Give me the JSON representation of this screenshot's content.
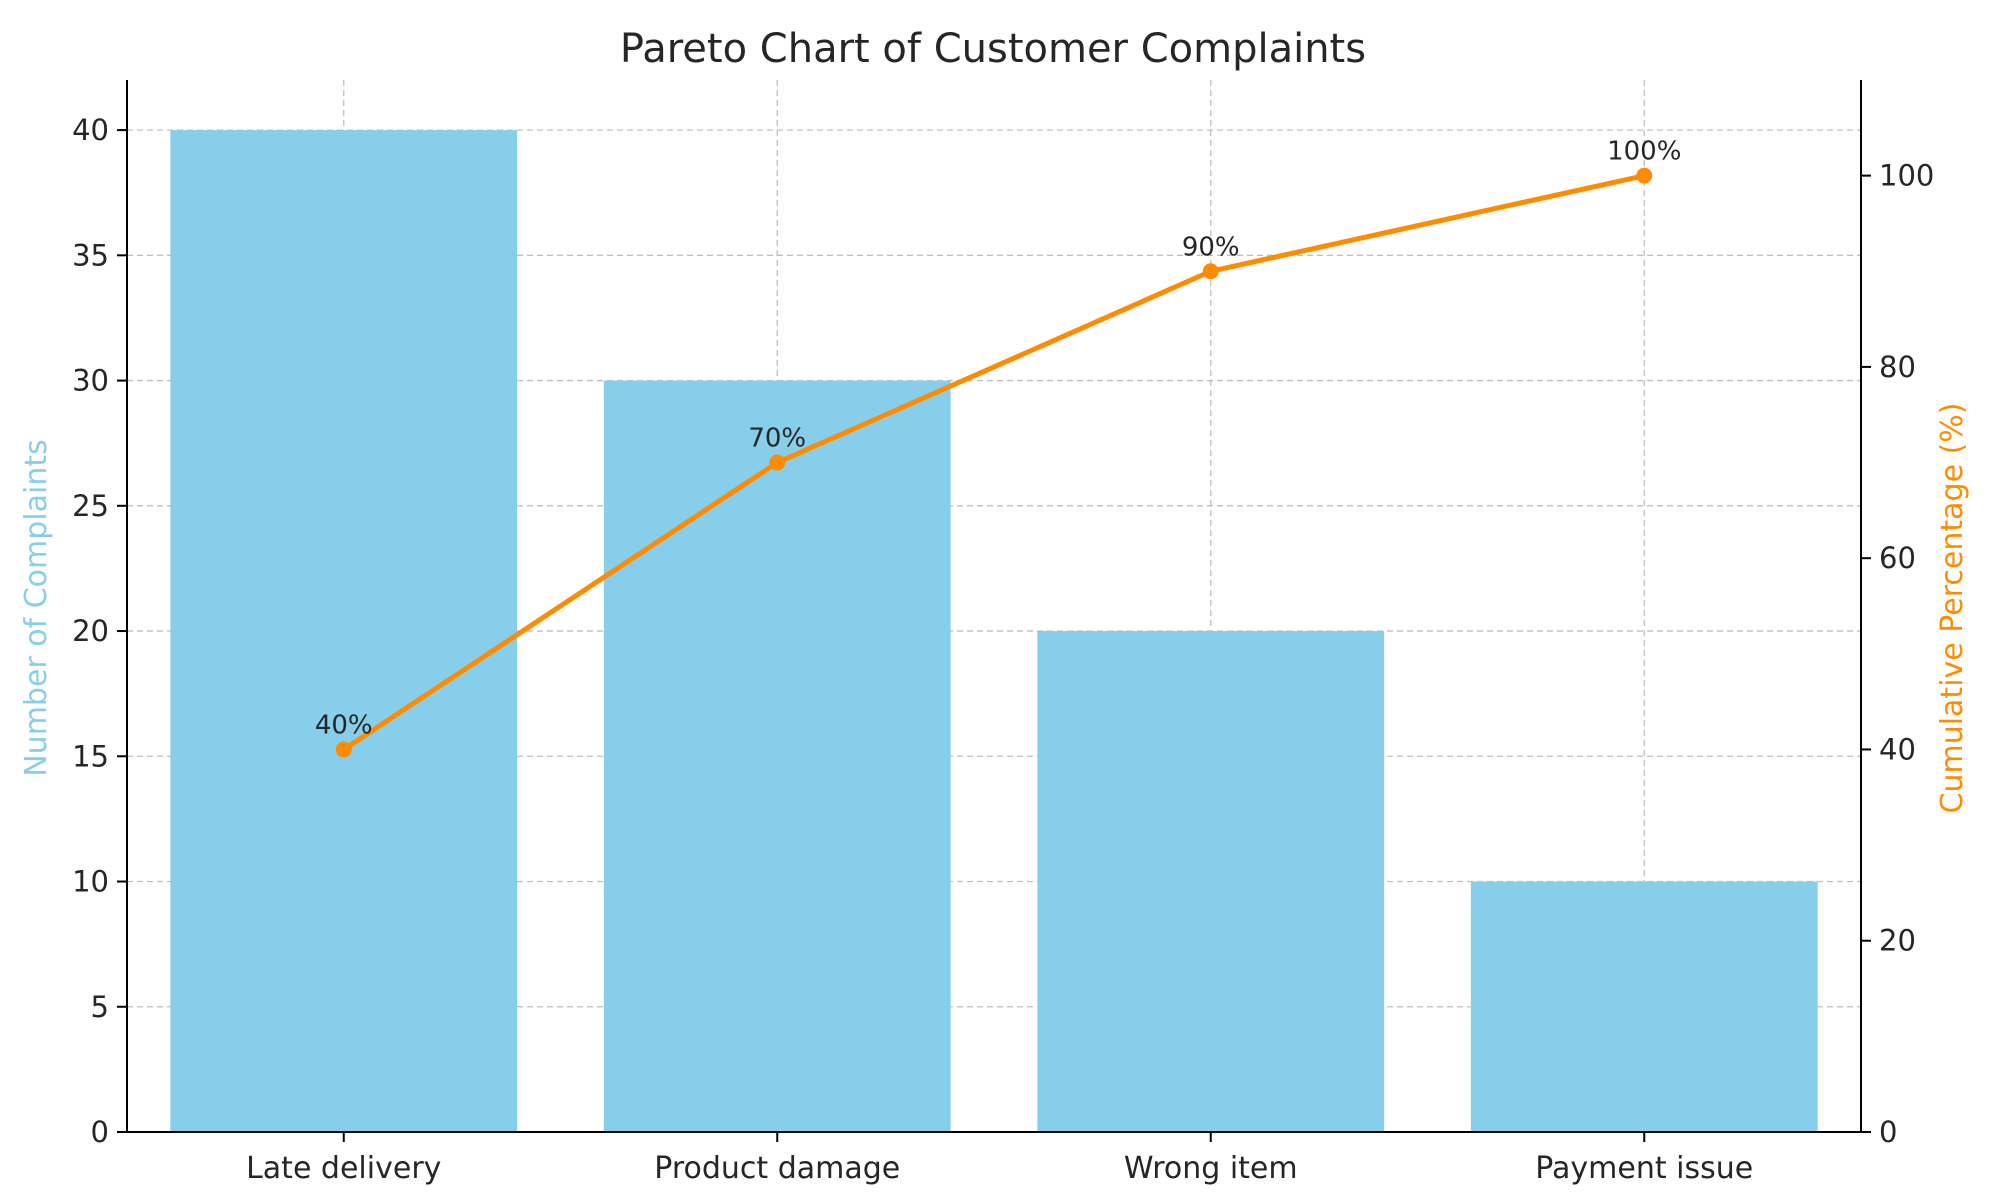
{
  "chart_data": {
    "type": "bar",
    "title": "Pareto Chart of Customer Complaints",
    "xlabel": "",
    "ylabel": "Number of Complaints",
    "y2label": "Cumulative Percentage (%)",
    "categories": [
      "Late delivery",
      "Product damage",
      "Wrong item",
      "Payment issue"
    ],
    "series": [
      {
        "type": "bar",
        "axis": "left",
        "values": [
          40,
          30,
          20,
          10
        ],
        "color": "#87CEEB"
      },
      {
        "type": "line",
        "axis": "right",
        "values": [
          40,
          70,
          90,
          100
        ],
        "labels": [
          "40%",
          "70%",
          "90%",
          "100%"
        ],
        "color": "#FF8C00"
      }
    ],
    "ylim": [
      0,
      42
    ],
    "y2lim": [
      0,
      110
    ],
    "yticks": [
      0,
      5,
      10,
      15,
      20,
      25,
      30,
      35,
      40
    ],
    "y2ticks": [
      0,
      20,
      40,
      60,
      80,
      100
    ],
    "grid": true,
    "ylabel_color": "#87CEEB",
    "y2label_color": "#FF8C00"
  }
}
